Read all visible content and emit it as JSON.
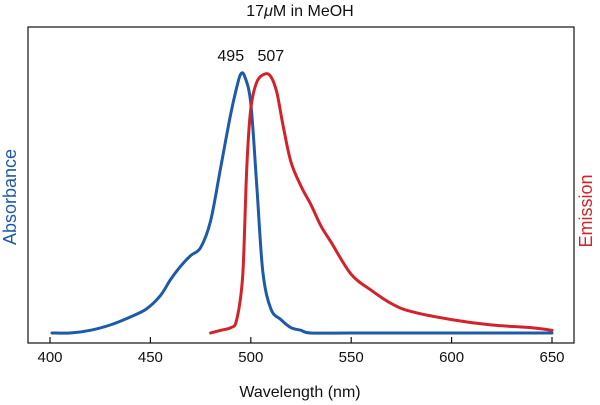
{
  "chart_data": {
    "type": "line",
    "title_parts": [
      "17",
      "μ",
      "M in MeOH"
    ],
    "xlabel": "Wavelength (nm)",
    "ylabel_left": "Absorbance",
    "ylabel_right": "Emission",
    "xlim": [
      400,
      650
    ],
    "ylim": [
      0,
      1
    ],
    "x_ticks": [
      400,
      450,
      500,
      550,
      600,
      650
    ],
    "y_ticks_shown": false,
    "grid": false,
    "colors": {
      "absorbance": "#1e5aa8",
      "emission": "#d2232a",
      "axis": "#111111"
    },
    "annotations": [
      {
        "text": "495",
        "x": 495
      },
      {
        "text": "507",
        "x": 507
      }
    ],
    "series": [
      {
        "name": "Absorbance",
        "axis": "left",
        "x": [
          401,
          410,
          420,
          430,
          440,
          448,
          455,
          460,
          465,
          470,
          475,
          480,
          485,
          490,
          493,
          495,
          497,
          500,
          503,
          506,
          510,
          515,
          520,
          525,
          530,
          550,
          600,
          650
        ],
        "y": [
          0.0,
          0.0,
          0.01,
          0.03,
          0.06,
          0.09,
          0.14,
          0.2,
          0.25,
          0.29,
          0.32,
          0.42,
          0.62,
          0.82,
          0.92,
          0.97,
          0.96,
          0.86,
          0.55,
          0.23,
          0.09,
          0.05,
          0.02,
          0.01,
          0.0,
          0.0,
          0.0,
          0.0
        ]
      },
      {
        "name": "Emission",
        "axis": "right",
        "x": [
          480,
          485,
          490,
          493,
          496,
          498,
          500,
          503,
          507,
          510,
          513,
          516,
          520,
          525,
          530,
          535,
          540,
          550,
          560,
          570,
          580,
          600,
          620,
          640,
          650
        ],
        "y": [
          0.0,
          0.01,
          0.02,
          0.05,
          0.22,
          0.62,
          0.84,
          0.94,
          0.97,
          0.96,
          0.9,
          0.78,
          0.64,
          0.55,
          0.48,
          0.4,
          0.34,
          0.22,
          0.16,
          0.11,
          0.08,
          0.05,
          0.03,
          0.02,
          0.01
        ]
      }
    ]
  }
}
